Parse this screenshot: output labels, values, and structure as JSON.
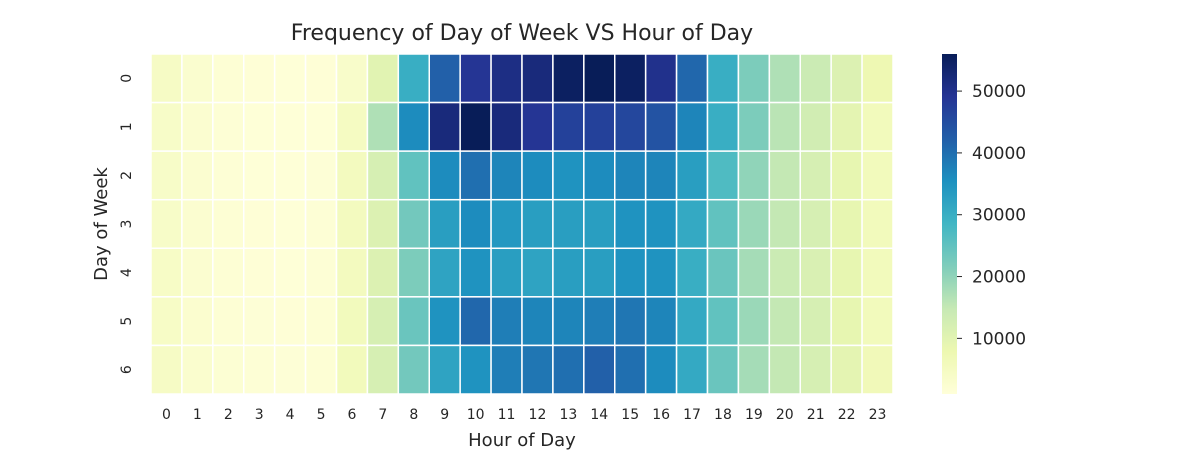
{
  "chart_data": {
    "type": "heatmap",
    "title": "Frequency of Day of Week VS Hour of Day",
    "xlabel": "Hour of Day",
    "ylabel": "Day of Week",
    "x_categories": [
      "0",
      "1",
      "2",
      "3",
      "4",
      "5",
      "6",
      "7",
      "8",
      "9",
      "10",
      "11",
      "12",
      "13",
      "14",
      "15",
      "16",
      "17",
      "18",
      "19",
      "20",
      "21",
      "22",
      "23"
    ],
    "y_categories": [
      "0",
      "1",
      "2",
      "3",
      "4",
      "5",
      "6"
    ],
    "values": [
      [
        4500,
        2800,
        1900,
        1500,
        1300,
        1500,
        3500,
        10000,
        30000,
        42000,
        49000,
        51000,
        52000,
        55000,
        56000,
        55000,
        50000,
        41000,
        30000,
        22000,
        17000,
        14000,
        11000,
        7500
      ],
      [
        4000,
        2500,
        1700,
        1400,
        1300,
        1400,
        5000,
        17000,
        36000,
        52000,
        57000,
        52000,
        49000,
        47000,
        47000,
        46000,
        44000,
        37000,
        30000,
        22000,
        16000,
        13000,
        9500,
        6000
      ],
      [
        4000,
        2500,
        1700,
        1400,
        1300,
        1600,
        5500,
        12000,
        25000,
        36000,
        40000,
        37000,
        36000,
        35000,
        36000,
        37000,
        37000,
        33000,
        27000,
        20000,
        15000,
        12000,
        9000,
        6000
      ],
      [
        4000,
        2500,
        1800,
        1500,
        1400,
        1700,
        5500,
        11000,
        23000,
        33000,
        36000,
        34000,
        33000,
        33000,
        33000,
        35000,
        35000,
        31000,
        25000,
        19000,
        15000,
        12000,
        9000,
        6000
      ],
      [
        4200,
        2600,
        1800,
        1500,
        1400,
        1700,
        5500,
        11000,
        22000,
        32000,
        35000,
        33000,
        32000,
        33000,
        33000,
        35000,
        35000,
        30000,
        24000,
        18000,
        14000,
        11500,
        9000,
        6000
      ],
      [
        4200,
        2700,
        1900,
        1600,
        1500,
        1800,
        5800,
        12000,
        24000,
        35000,
        41000,
        38000,
        37000,
        37000,
        38000,
        39000,
        37000,
        31000,
        25000,
        19000,
        15000,
        12000,
        9000,
        6000
      ],
      [
        4500,
        2900,
        2000,
        1700,
        1600,
        1900,
        5900,
        12000,
        23000,
        32000,
        35000,
        38000,
        39000,
        40000,
        42000,
        40000,
        36000,
        31000,
        24000,
        18000,
        15000,
        12000,
        9500,
        6500
      ]
    ],
    "vmin": 1000,
    "vmax": 56000,
    "colormap": "YlGnBu",
    "colorbar_ticks": [
      10000,
      20000,
      30000,
      40000,
      50000
    ],
    "grid_line_color": "#ffffff"
  }
}
